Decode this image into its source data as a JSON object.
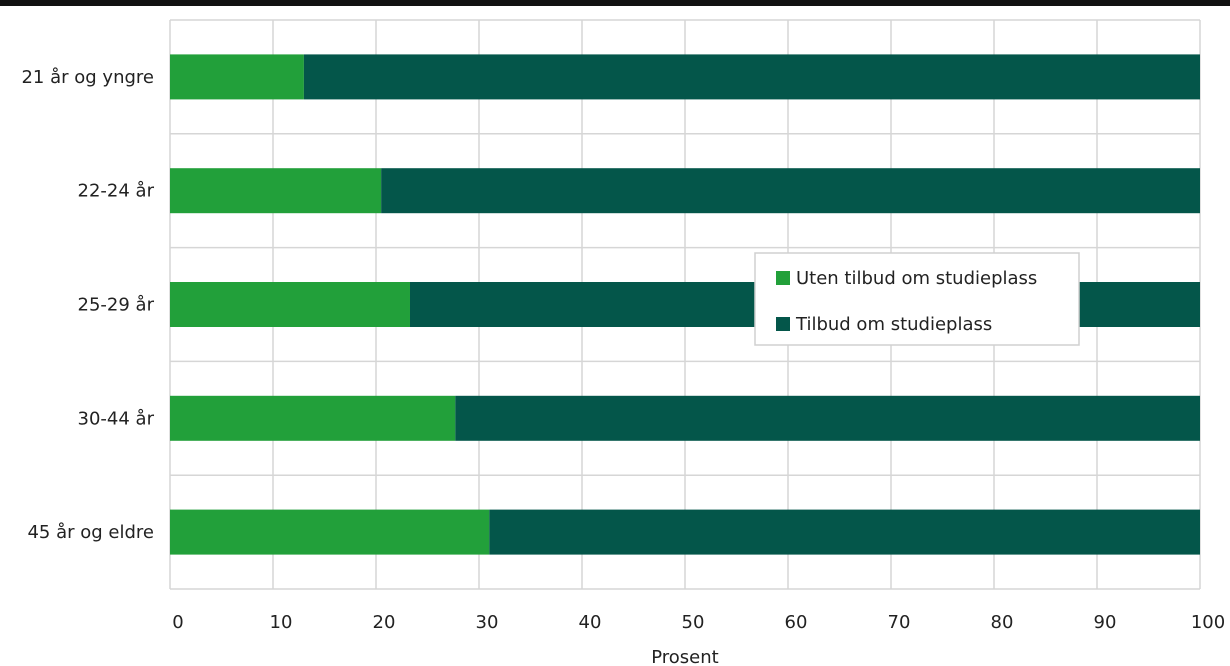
{
  "chart_data": {
    "type": "bar",
    "orientation": "horizontal",
    "stacked": true,
    "categories": [
      "21 år og yngre",
      "22-24 år",
      "25-29 år",
      "30-44 år",
      "45 år og eldre"
    ],
    "series": [
      {
        "name": "Uten tilbud om studieplass",
        "color": "#22a03a",
        "values": [
          13,
          20.5,
          23.3,
          27.7,
          31
        ]
      },
      {
        "name": "Tilbud om studieplass",
        "color": "#04564a",
        "values": [
          87,
          79.5,
          76.7,
          72.3,
          69
        ]
      }
    ],
    "xlabel": "Prosent",
    "ylabel": "",
    "xlim": [
      0,
      100
    ],
    "xticks": [
      "0",
      "10",
      "20",
      "30",
      "40",
      "50",
      "60",
      "70",
      "80",
      "90",
      "100"
    ],
    "grid": true,
    "legend_position": "center-right"
  }
}
